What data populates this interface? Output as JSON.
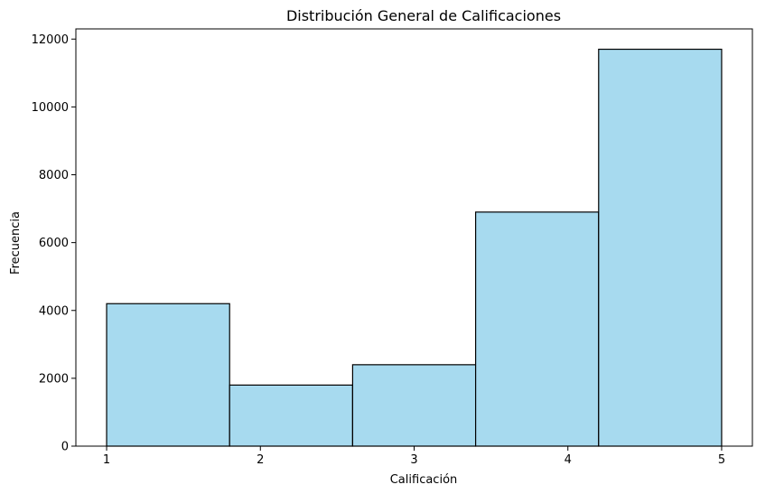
{
  "chart_data": {
    "type": "bar",
    "title": "Distribución General de Calificaciones",
    "xlabel": "Calificación",
    "ylabel": "Frecuencia",
    "bins": [
      {
        "start": 1.0,
        "end": 1.8,
        "value": 4200
      },
      {
        "start": 1.8,
        "end": 2.6,
        "value": 1800
      },
      {
        "start": 2.6,
        "end": 3.4,
        "value": 2400
      },
      {
        "start": 3.4,
        "end": 4.2,
        "value": 6900
      },
      {
        "start": 4.2,
        "end": 5.0,
        "value": 11700
      }
    ],
    "xticks": [
      1,
      2,
      3,
      4,
      5
    ],
    "yticks": [
      0,
      2000,
      4000,
      6000,
      8000,
      10000,
      12000
    ],
    "xlim": [
      0.8,
      5.2
    ],
    "ylim": [
      0,
      12300
    ],
    "grid": false,
    "bar_color": "#a7daef",
    "edge_color": "#000000"
  }
}
